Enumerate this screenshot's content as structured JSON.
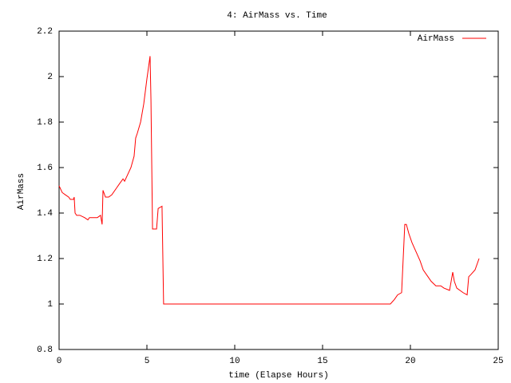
{
  "chart_data": {
    "type": "line",
    "title": "4: AirMass vs. Time",
    "x_label": "time (Elapse Hours)",
    "y_label": "AirMass",
    "xlim": [
      0,
      25
    ],
    "xticks": [
      0,
      5,
      10,
      15,
      20,
      25
    ],
    "ylim": [
      0.8,
      2.2
    ],
    "yticks": [
      0.8,
      1,
      1.2,
      1.4,
      1.6,
      1.8,
      2,
      2.2
    ],
    "legend": "upper right",
    "grid": false,
    "series": [
      {
        "name": "AirMass",
        "color": "#ff0000",
        "x": [
          0,
          0.18,
          0.36,
          0.55,
          0.64,
          0.82,
          0.86,
          0.91,
          1.0,
          1.18,
          1.45,
          1.64,
          1.73,
          1.91,
          2.18,
          2.36,
          2.45,
          2.5,
          2.64,
          2.82,
          3.0,
          3.27,
          3.45,
          3.64,
          3.73,
          3.91,
          4.09,
          4.27,
          4.36,
          4.45,
          4.64,
          4.82,
          5.0,
          5.09,
          5.18,
          5.23,
          5.32,
          5.55,
          5.64,
          5.86,
          5.95,
          18.86,
          19.09,
          19.27,
          19.5,
          19.68,
          19.77,
          19.91,
          20.09,
          20.32,
          20.55,
          20.73,
          21.0,
          21.18,
          21.45,
          21.73,
          21.91,
          22.23,
          22.41,
          22.5,
          22.64,
          23.0,
          23.23,
          23.32,
          23.45,
          23.68,
          23.91
        ],
        "values": [
          1.52,
          1.49,
          1.48,
          1.47,
          1.46,
          1.46,
          1.47,
          1.4,
          1.39,
          1.39,
          1.38,
          1.37,
          1.38,
          1.38,
          1.38,
          1.39,
          1.35,
          1.5,
          1.47,
          1.47,
          1.48,
          1.51,
          1.53,
          1.55,
          1.54,
          1.57,
          1.6,
          1.65,
          1.73,
          1.75,
          1.8,
          1.88,
          1.99,
          2.04,
          2.09,
          1.9,
          1.33,
          1.33,
          1.42,
          1.43,
          1.0,
          1.0,
          1.02,
          1.04,
          1.05,
          1.35,
          1.35,
          1.31,
          1.27,
          1.23,
          1.19,
          1.15,
          1.12,
          1.1,
          1.08,
          1.08,
          1.07,
          1.06,
          1.14,
          1.1,
          1.07,
          1.05,
          1.04,
          1.12,
          1.13,
          1.15,
          1.2
        ]
      }
    ]
  }
}
